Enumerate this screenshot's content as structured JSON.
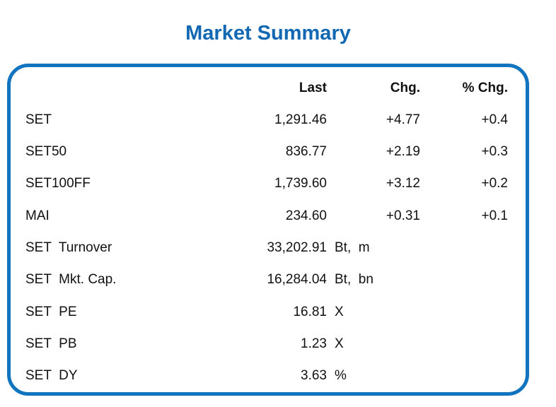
{
  "title": "Market Summary",
  "colors": {
    "title_text": "#1268B2",
    "panel_border": "#1273BE",
    "body_text": "#111111"
  },
  "table": {
    "headers": {
      "last": "Last",
      "chg": "Chg.",
      "pct_chg": "% Chg."
    },
    "rows": [
      {
        "label": "SET",
        "last": "1,291.46",
        "suffix": "",
        "chg": "+4.77",
        "pct": "+0.4"
      },
      {
        "label": "SET50",
        "last": "836.77",
        "suffix": "",
        "chg": "+2.19",
        "pct": "+0.3"
      },
      {
        "label": "SET100FF",
        "last": "1,739.60",
        "suffix": "",
        "chg": "+3.12",
        "pct": "+0.2"
      },
      {
        "label": "MAI",
        "last": "234.60",
        "suffix": "",
        "chg": "+0.31",
        "pct": "+0.1"
      },
      {
        "label": "SET  Turnover",
        "last": "33,202.91",
        "suffix": "Bt,  m",
        "chg": "",
        "pct": ""
      },
      {
        "label": "SET  Mkt. Cap.",
        "last": "16,284.04",
        "suffix": "Bt,  bn",
        "chg": "",
        "pct": ""
      },
      {
        "label": "SET  PE",
        "last": "16.81",
        "suffix": "X",
        "chg": "",
        "pct": ""
      },
      {
        "label": "SET  PB",
        "last": "1.23",
        "suffix": "X",
        "chg": "",
        "pct": ""
      },
      {
        "label": "SET  DY",
        "last": "3.63",
        "suffix": "%",
        "chg": "",
        "pct": ""
      }
    ]
  }
}
